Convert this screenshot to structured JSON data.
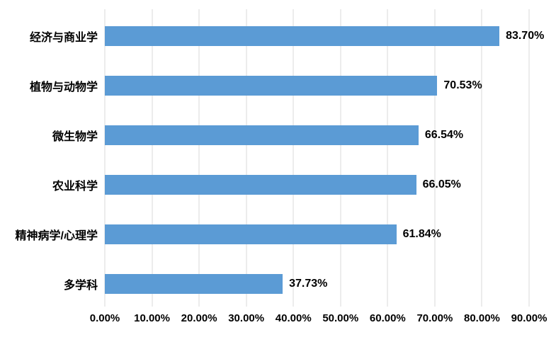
{
  "chart_data": {
    "type": "bar",
    "orientation": "horizontal",
    "title": "",
    "xlabel": "",
    "ylabel": "",
    "categories": [
      "经济与商业学",
      "植物与动物学",
      "微生物学",
      "农业科学",
      "精神病学/心理学",
      "多学科"
    ],
    "values": [
      83.7,
      70.53,
      66.54,
      66.05,
      61.84,
      37.73
    ],
    "value_labels": [
      "83.70%",
      "70.53%",
      "66.54%",
      "66.05%",
      "61.84%",
      "37.73%"
    ],
    "x_ticks": [
      "0.00%",
      "10.00%",
      "20.00%",
      "30.00%",
      "40.00%",
      "50.00%",
      "60.00%",
      "70.00%",
      "80.00%",
      "90.00%"
    ],
    "x_tick_values": [
      0,
      10,
      20,
      30,
      40,
      50,
      60,
      70,
      80,
      90
    ],
    "xlim": [
      0,
      90
    ],
    "grid": "vertical",
    "legend": "none",
    "bar_color": "#5B9BD5",
    "gridline_color": "#D9D9D9",
    "text_color": "#000000",
    "background_color": "#FFFFFF"
  }
}
